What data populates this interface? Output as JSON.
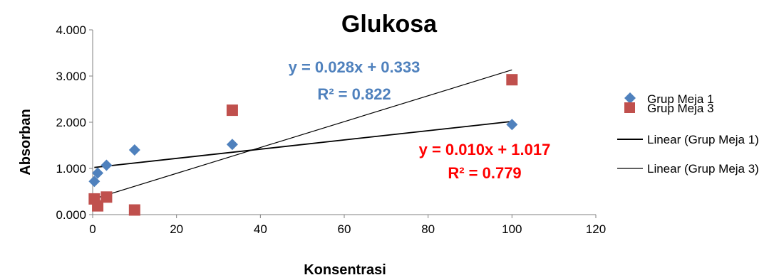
{
  "colors": {
    "series1": "#4f81bd",
    "series3": "#c0504d",
    "eq1": "#4f81bd",
    "eq3": "#ff0000",
    "trend": "#000000"
  },
  "chart_data": {
    "type": "scatter",
    "title": "Glukosa",
    "xlabel": "Konsentrasi",
    "ylabel": "Absorban",
    "xlim": [
      0,
      120
    ],
    "ylim": [
      0,
      4
    ],
    "xticks": [
      "0",
      "20",
      "40",
      "60",
      "80",
      "100",
      "120"
    ],
    "yticks": [
      "0.000",
      "1.000",
      "2.000",
      "3.000",
      "4.000"
    ],
    "grid": false,
    "legend_position": "right",
    "series": [
      {
        "name": "Grup Meja 1",
        "marker": "diamond",
        "points": [
          [
            0.4,
            0.72
          ],
          [
            1.2,
            0.9
          ],
          [
            3.3,
            1.07
          ],
          [
            10,
            1.4
          ],
          [
            33.3,
            1.52
          ],
          [
            100,
            1.95
          ]
        ]
      },
      {
        "name": "Grup Meja 3",
        "marker": "square",
        "points": [
          [
            0.4,
            0.34
          ],
          [
            1.2,
            0.19
          ],
          [
            3.3,
            0.38
          ],
          [
            10,
            0.1
          ],
          [
            33.3,
            2.26
          ],
          [
            100,
            2.92
          ]
        ]
      }
    ],
    "trendlines": [
      {
        "name": "Linear (Grup Meja 1)",
        "slope": 0.01,
        "intercept": 1.017,
        "equation": "y = 0.010x + 1.017",
        "r2": "R² = 0.779"
      },
      {
        "name": "Linear (Grup Meja 3)",
        "slope": 0.028,
        "intercept": 0.333,
        "equation": "y = 0.028x + 0.333",
        "r2": "R² = 0.822"
      }
    ]
  }
}
